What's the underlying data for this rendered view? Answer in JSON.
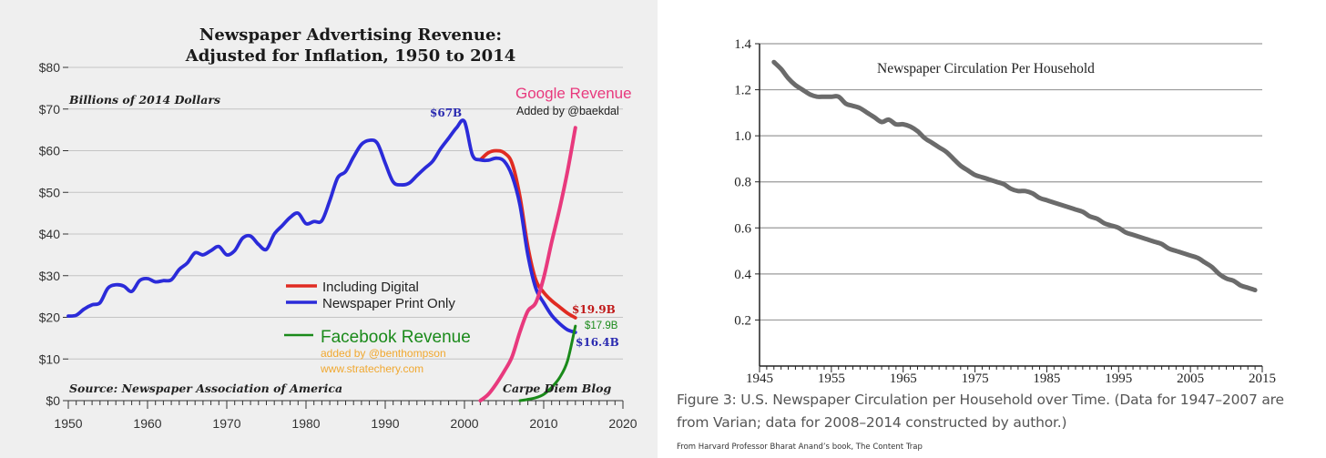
{
  "left_chart": {
    "title_line1": "Newspaper Advertising Revenue:",
    "title_line2": "Adjusted for Inflation, 1950 to 2014",
    "units_note": "Billions of 2014 Dollars",
    "source_note": "Source: Newspaper Association of America",
    "credit": "Carpe Diem Blog",
    "google_label": "Google Revenue",
    "google_added": "Added by @baekdal",
    "facebook_label": "Facebook Revenue",
    "facebook_added1": "added by @benthompson",
    "facebook_added2": "www.stratechery.com",
    "peak_label": "$67B",
    "digital_end_label": "$19.9B",
    "print_end_label": "$16.4B",
    "facebook_end_label": "$17.9B",
    "legend": [
      "Including Digital",
      "Newspaper Print Only"
    ],
    "colors": {
      "print": "#2b2bd9",
      "digital": "#e02b22",
      "google": "#e8397d",
      "facebook": "#1a8a1a",
      "orange": "#f0a830",
      "title": "#1a1a1a",
      "label_blue": "#2a2ab0",
      "label_red": "#c01818"
    }
  },
  "right_chart": {
    "title": "Newspaper Circulation Per Household",
    "color": "#6b6b6b"
  },
  "caption": {
    "line1": "Figure 3: U.S. Newspaper Circulation per Household over Time. (Data for 1947–2007 are",
    "line2": "from Varian; data for 2008–2014 constructed by author.)",
    "line3": "From Harvard Professor Bharat Anand’s book, The Content Trap"
  },
  "chart_data": [
    {
      "type": "line",
      "title": "Newspaper Advertising Revenue: Adjusted for Inflation, 1950 to 2014",
      "ylabel": "Billions of 2014 Dollars",
      "xlim": [
        1950,
        2020
      ],
      "ylim": [
        0,
        80
      ],
      "xticks": [
        1950,
        1960,
        1970,
        1980,
        1990,
        2000,
        2010,
        2020
      ],
      "yticks": [
        0,
        10,
        20,
        30,
        40,
        50,
        60,
        70,
        80
      ],
      "ytick_labels": [
        "$0",
        "$10",
        "$20",
        "$30",
        "$40",
        "$50",
        "$60",
        "$70",
        "$80"
      ],
      "grid": true,
      "legend_position": "center-right",
      "series": [
        {
          "name": "Newspaper Print Only",
          "x": [
            1950,
            1951,
            1952,
            1953,
            1954,
            1955,
            1956,
            1957,
            1958,
            1959,
            1960,
            1961,
            1962,
            1963,
            1964,
            1965,
            1966,
            1967,
            1968,
            1969,
            1970,
            1971,
            1972,
            1973,
            1974,
            1975,
            1976,
            1977,
            1978,
            1979,
            1980,
            1981,
            1982,
            1983,
            1984,
            1985,
            1986,
            1987,
            1988,
            1989,
            1990,
            1991,
            1992,
            1993,
            1994,
            1995,
            1996,
            1997,
            1998,
            1999,
            2000,
            2001,
            2002,
            2003,
            2004,
            2005,
            2006,
            2007,
            2008,
            2009,
            2010,
            2011,
            2012,
            2013,
            2014
          ],
          "y": [
            20.3,
            20.5,
            22,
            23,
            23.5,
            27,
            27.8,
            27.5,
            26.2,
            28.8,
            29.3,
            28.5,
            28.8,
            29,
            31.5,
            33,
            35.5,
            35,
            36,
            37,
            35,
            36,
            39,
            39.5,
            37.5,
            36.3,
            40,
            42,
            44,
            45,
            42.5,
            43,
            43.2,
            48,
            53.5,
            55,
            58.5,
            61.5,
            62.5,
            61.8,
            57,
            52.5,
            51.8,
            52.2,
            54,
            55.8,
            57.5,
            60.5,
            63,
            65.5,
            67,
            59,
            57.8,
            57.7,
            58.2,
            57.5,
            54,
            47,
            35,
            27,
            23.5,
            20.5,
            18.5,
            17,
            16.4
          ]
        },
        {
          "name": "Including Digital",
          "x": [
            2002,
            2003,
            2004,
            2005,
            2006,
            2007,
            2008,
            2009,
            2010,
            2011,
            2012,
            2013,
            2014
          ],
          "y": [
            57.8,
            59.5,
            60,
            59.5,
            57,
            49,
            37,
            29,
            26,
            24,
            22.5,
            21,
            19.9
          ]
        },
        {
          "name": "Google Revenue",
          "x": [
            2002,
            2003,
            2004,
            2005,
            2006,
            2007,
            2008,
            2009,
            2010,
            2011,
            2012,
            2013,
            2014
          ],
          "y": [
            0,
            1.5,
            4,
            7,
            10.5,
            16.5,
            21.5,
            23.5,
            29.5,
            38,
            46,
            55,
            65.5
          ]
        },
        {
          "name": "Facebook Revenue",
          "x": [
            2007,
            2008,
            2009,
            2010,
            2011,
            2012,
            2013,
            2014
          ],
          "y": [
            0,
            0.3,
            0.7,
            1.5,
            3.2,
            5.5,
            9.5,
            17.9
          ]
        }
      ]
    },
    {
      "type": "line",
      "title": "Newspaper Circulation Per Household",
      "xlim": [
        1945,
        2015
      ],
      "ylim": [
        0,
        1.4
      ],
      "xticks": [
        1945,
        1955,
        1965,
        1975,
        1985,
        1995,
        2005,
        2015
      ],
      "yticks": [
        0.2,
        0.4,
        0.6,
        0.8,
        1.0,
        1.2,
        1.4
      ],
      "ytick_labels": [
        "0.2",
        "0.4",
        "0.6",
        "0.8",
        "1.0",
        "1.2",
        "1.4"
      ],
      "grid": true,
      "series": [
        {
          "x": [
            1947,
            1948,
            1949,
            1950,
            1951,
            1952,
            1953,
            1954,
            1955,
            1956,
            1957,
            1958,
            1959,
            1960,
            1961,
            1962,
            1963,
            1964,
            1965,
            1966,
            1967,
            1968,
            1969,
            1970,
            1971,
            1972,
            1973,
            1974,
            1975,
            1976,
            1977,
            1978,
            1979,
            1980,
            1981,
            1982,
            1983,
            1984,
            1985,
            1986,
            1987,
            1988,
            1989,
            1990,
            1991,
            1992,
            1993,
            1994,
            1995,
            1996,
            1997,
            1998,
            1999,
            2000,
            2001,
            2002,
            2003,
            2004,
            2005,
            2006,
            2007,
            2008,
            2009,
            2010,
            2011,
            2012,
            2013,
            2014
          ],
          "y": [
            1.32,
            1.29,
            1.25,
            1.22,
            1.2,
            1.18,
            1.17,
            1.17,
            1.17,
            1.17,
            1.14,
            1.13,
            1.12,
            1.1,
            1.08,
            1.06,
            1.07,
            1.05,
            1.05,
            1.04,
            1.02,
            0.99,
            0.97,
            0.95,
            0.93,
            0.9,
            0.87,
            0.85,
            0.83,
            0.82,
            0.81,
            0.8,
            0.79,
            0.77,
            0.76,
            0.76,
            0.75,
            0.73,
            0.72,
            0.71,
            0.7,
            0.69,
            0.68,
            0.67,
            0.65,
            0.64,
            0.62,
            0.61,
            0.6,
            0.58,
            0.57,
            0.56,
            0.55,
            0.54,
            0.53,
            0.51,
            0.5,
            0.49,
            0.48,
            0.47,
            0.45,
            0.43,
            0.4,
            0.38,
            0.37,
            0.35,
            0.34,
            0.33
          ]
        }
      ]
    }
  ]
}
